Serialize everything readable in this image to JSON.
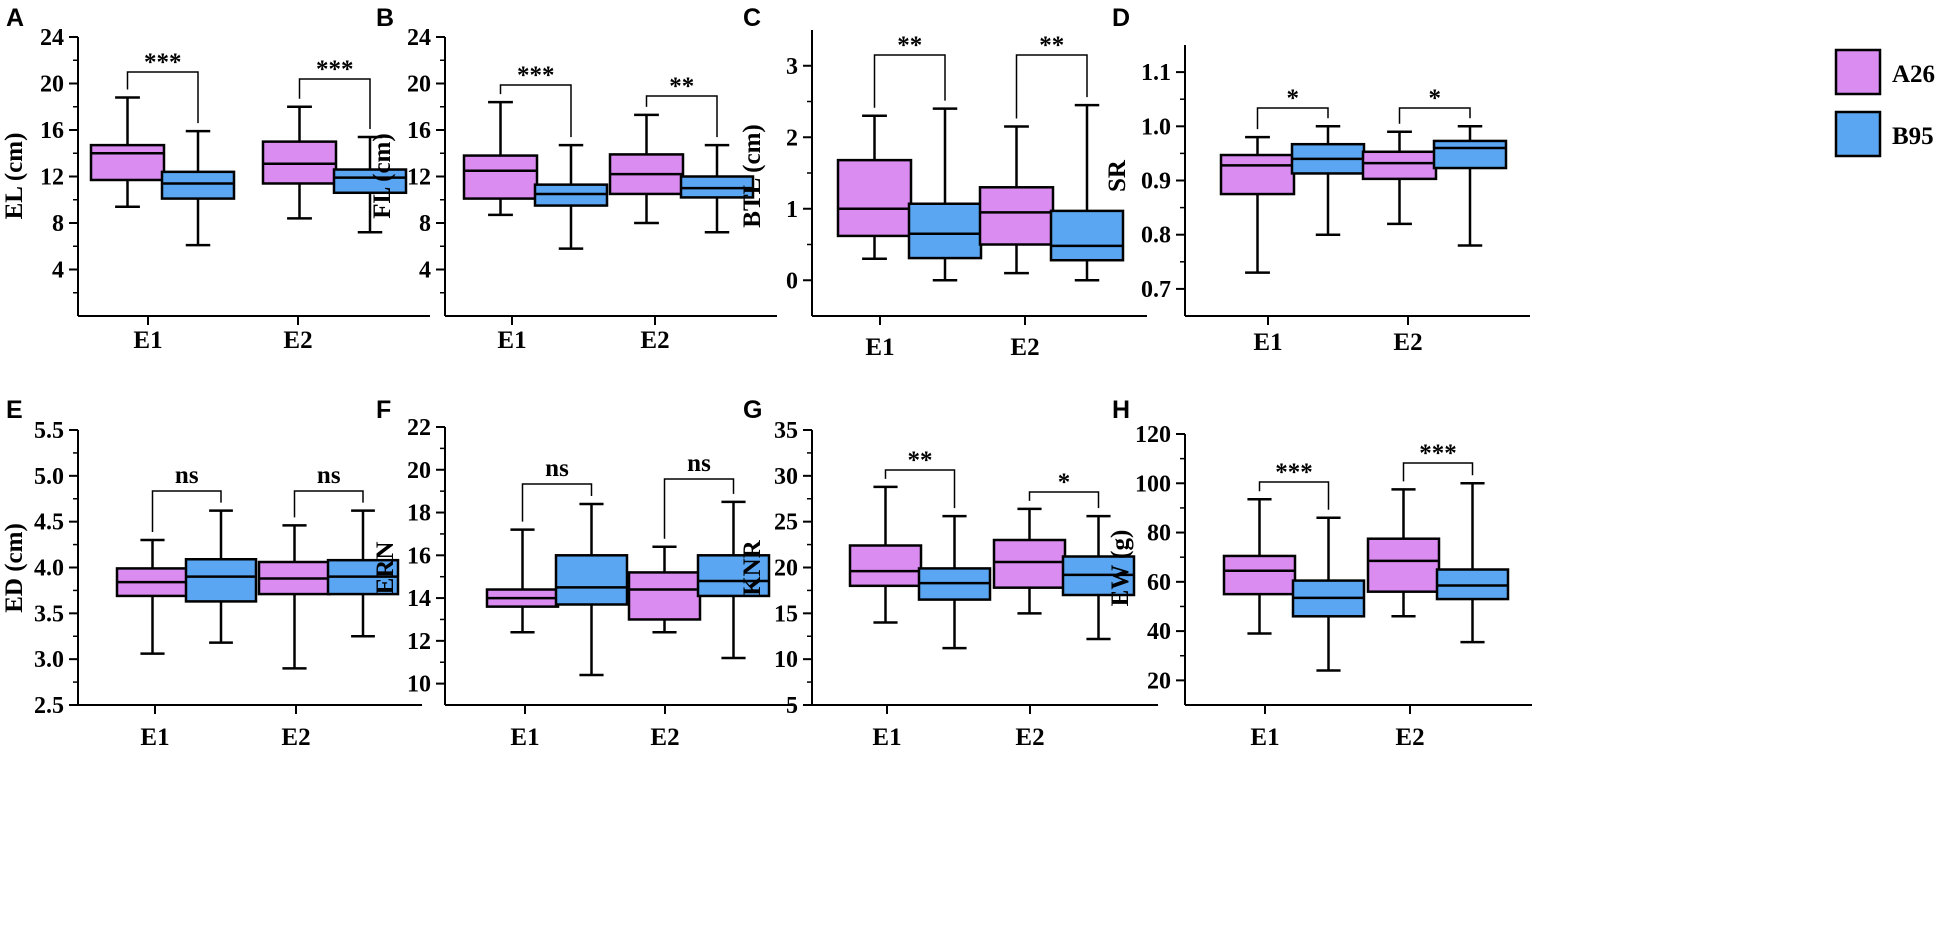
{
  "colors": {
    "A26": "#da8cf0",
    "B95": "#5aa6f2",
    "line": "#000000"
  },
  "legend": [
    {
      "name": "A26",
      "color": "#da8cf0"
    },
    {
      "name": "B95",
      "color": "#5aa6f2"
    }
  ],
  "chart_data": [
    {
      "type": "box",
      "panel": "A",
      "ylabel": "EL (cm)",
      "ylim": [
        0,
        24
      ],
      "ticks": [
        "4",
        "8",
        "12",
        "16",
        "20",
        "24"
      ],
      "tickValues": [
        4,
        8,
        12,
        16,
        20,
        24
      ],
      "categories": [
        "E1",
        "E2"
      ],
      "boxes": [
        {
          "min": 9.4,
          "q1": 11.7,
          "median": 14.0,
          "q3": 14.7,
          "max": 18.8
        },
        {
          "min": 6.1,
          "q1": 10.1,
          "median": 11.4,
          "q3": 12.4,
          "max": 15.9
        },
        {
          "min": 8.4,
          "q1": 11.4,
          "median": 13.1,
          "q3": 15.0,
          "max": 18.0
        },
        {
          "min": 7.2,
          "q1": 10.6,
          "median": 11.9,
          "q3": 12.6,
          "max": 15.4
        }
      ],
      "significance": [
        "***",
        "***"
      ]
    },
    {
      "type": "box",
      "panel": "B",
      "ylabel": "FL (cm)",
      "ylim": [
        0,
        24
      ],
      "ticks": [
        "4",
        "8",
        "12",
        "16",
        "20",
        "24"
      ],
      "tickValues": [
        4,
        8,
        12,
        16,
        20,
        24
      ],
      "categories": [
        "E1",
        "E2"
      ],
      "boxes": [
        {
          "min": 8.7,
          "q1": 10.1,
          "median": 12.5,
          "q3": 13.8,
          "max": 18.4
        },
        {
          "min": 5.8,
          "q1": 9.5,
          "median": 10.5,
          "q3": 11.3,
          "max": 14.7
        },
        {
          "min": 8.0,
          "q1": 10.5,
          "median": 12.2,
          "q3": 13.9,
          "max": 17.3
        },
        {
          "min": 7.2,
          "q1": 10.2,
          "median": 11.0,
          "q3": 12.0,
          "max": 14.7
        }
      ],
      "significance": [
        "***",
        "**"
      ]
    },
    {
      "type": "box",
      "panel": "C",
      "ylabel": "BTL (cm)",
      "ylim": [
        -0.5,
        3.5
      ],
      "ticks": [
        "0",
        "1",
        "2",
        "3"
      ],
      "tickValues": [
        0,
        1,
        2,
        3
      ],
      "categories": [
        "E1",
        "E2"
      ],
      "boxes": [
        {
          "min": 0.3,
          "q1": 0.62,
          "median": 1.0,
          "q3": 1.68,
          "max": 2.3
        },
        {
          "min": 0.0,
          "q1": 0.31,
          "median": 0.65,
          "q3": 1.07,
          "max": 2.4
        },
        {
          "min": 0.1,
          "q1": 0.5,
          "median": 0.95,
          "q3": 1.3,
          "max": 2.15
        },
        {
          "min": 0.0,
          "q1": 0.28,
          "median": 0.48,
          "q3": 0.97,
          "max": 2.45
        }
      ],
      "significance": [
        "**",
        "**"
      ]
    },
    {
      "type": "box",
      "panel": "D",
      "ylabel": "SR",
      "ylim": [
        0.65,
        1.15
      ],
      "ticks": [
        "0.7",
        "0.8",
        "0.9",
        "1.0",
        "1.1"
      ],
      "tickValues": [
        0.7,
        0.8,
        0.9,
        1.0,
        1.1
      ],
      "categories": [
        "E1",
        "E2"
      ],
      "boxes": [
        {
          "min": 0.73,
          "q1": 0.875,
          "median": 0.928,
          "q3": 0.947,
          "max": 0.98
        },
        {
          "min": 0.8,
          "q1": 0.913,
          "median": 0.94,
          "q3": 0.967,
          "max": 1.0
        },
        {
          "min": 0.82,
          "q1": 0.903,
          "median": 0.932,
          "q3": 0.953,
          "max": 0.99
        },
        {
          "min": 0.78,
          "q1": 0.923,
          "median": 0.96,
          "q3": 0.973,
          "max": 1.0
        }
      ],
      "significance": [
        "*",
        "*"
      ]
    },
    {
      "type": "box",
      "panel": "E",
      "ylabel": "ED (cm)",
      "ylim": [
        2.5,
        5.5
      ],
      "ticks": [
        "2.5",
        "3.0",
        "3.5",
        "4.0",
        "4.5",
        "5.0",
        "5.5"
      ],
      "tickValues": [
        2.5,
        3.0,
        3.5,
        4.0,
        4.5,
        5.0,
        5.5
      ],
      "categories": [
        "E1",
        "E2"
      ],
      "boxes": [
        {
          "min": 3.06,
          "q1": 3.69,
          "median": 3.84,
          "q3": 3.99,
          "max": 4.3
        },
        {
          "min": 3.18,
          "q1": 3.63,
          "median": 3.9,
          "q3": 4.09,
          "max": 4.62
        },
        {
          "min": 2.9,
          "q1": 3.71,
          "median": 3.88,
          "q3": 4.06,
          "max": 4.46
        },
        {
          "min": 3.25,
          "q1": 3.71,
          "median": 3.9,
          "q3": 4.08,
          "max": 4.62
        }
      ],
      "significance": [
        "ns",
        "ns"
      ]
    },
    {
      "type": "box",
      "panel": "F",
      "ylabel": "ERN",
      "ylim": [
        9,
        22
      ],
      "ticks": [
        "10",
        "12",
        "14",
        "16",
        "18",
        "20",
        "22"
      ],
      "tickValues": [
        10,
        12,
        14,
        16,
        18,
        20,
        22
      ],
      "categories": [
        "E1",
        "E2"
      ],
      "boxes": [
        {
          "min": 12.4,
          "q1": 13.6,
          "median": 14.0,
          "q3": 14.4,
          "max": 17.2
        },
        {
          "min": 10.4,
          "q1": 13.7,
          "median": 14.5,
          "q3": 16.0,
          "max": 18.4
        },
        {
          "min": 12.4,
          "q1": 13.0,
          "median": 14.4,
          "q3": 15.2,
          "max": 16.4
        },
        {
          "min": 11.2,
          "q1": 14.1,
          "median": 14.8,
          "q3": 16.0,
          "max": 18.5
        }
      ],
      "significance": [
        "ns",
        "ns"
      ]
    },
    {
      "type": "box",
      "panel": "G",
      "ylabel": "KNR",
      "ylim": [
        5,
        35
      ],
      "ticks": [
        "5",
        "10",
        "15",
        "20",
        "25",
        "30",
        "35"
      ],
      "tickValues": [
        5,
        10,
        15,
        20,
        25,
        30,
        35
      ],
      "categories": [
        "E1",
        "E2"
      ],
      "boxes": [
        {
          "min": 14.0,
          "q1": 18.0,
          "median": 19.6,
          "q3": 22.4,
          "max": 28.8
        },
        {
          "min": 11.2,
          "q1": 16.5,
          "median": 18.3,
          "q3": 19.9,
          "max": 25.6
        },
        {
          "min": 15.0,
          "q1": 17.8,
          "median": 20.6,
          "q3": 23.0,
          "max": 26.4
        },
        {
          "min": 12.2,
          "q1": 17.0,
          "median": 19.2,
          "q3": 21.2,
          "max": 25.6
        }
      ],
      "significance": [
        "**",
        "*"
      ]
    },
    {
      "type": "box",
      "panel": "H",
      "ylabel": "EW (g)",
      "ylim": [
        10,
        120
      ],
      "ticks": [
        "20",
        "40",
        "60",
        "80",
        "100",
        "120"
      ],
      "tickValues": [
        20,
        40,
        60,
        80,
        100,
        120
      ],
      "categories": [
        "E1",
        "E2"
      ],
      "boxes": [
        {
          "min": 39,
          "q1": 55,
          "median": 64.5,
          "q3": 70.5,
          "max": 93.5
        },
        {
          "min": 24,
          "q1": 46,
          "median": 53.5,
          "q3": 60.5,
          "max": 86
        },
        {
          "min": 46,
          "q1": 56,
          "median": 68.5,
          "q3": 77.5,
          "max": 97.5
        },
        {
          "min": 35.5,
          "q1": 53,
          "median": 58.5,
          "q3": 65,
          "max": 100
        }
      ],
      "significance": [
        "***",
        "***"
      ]
    }
  ]
}
